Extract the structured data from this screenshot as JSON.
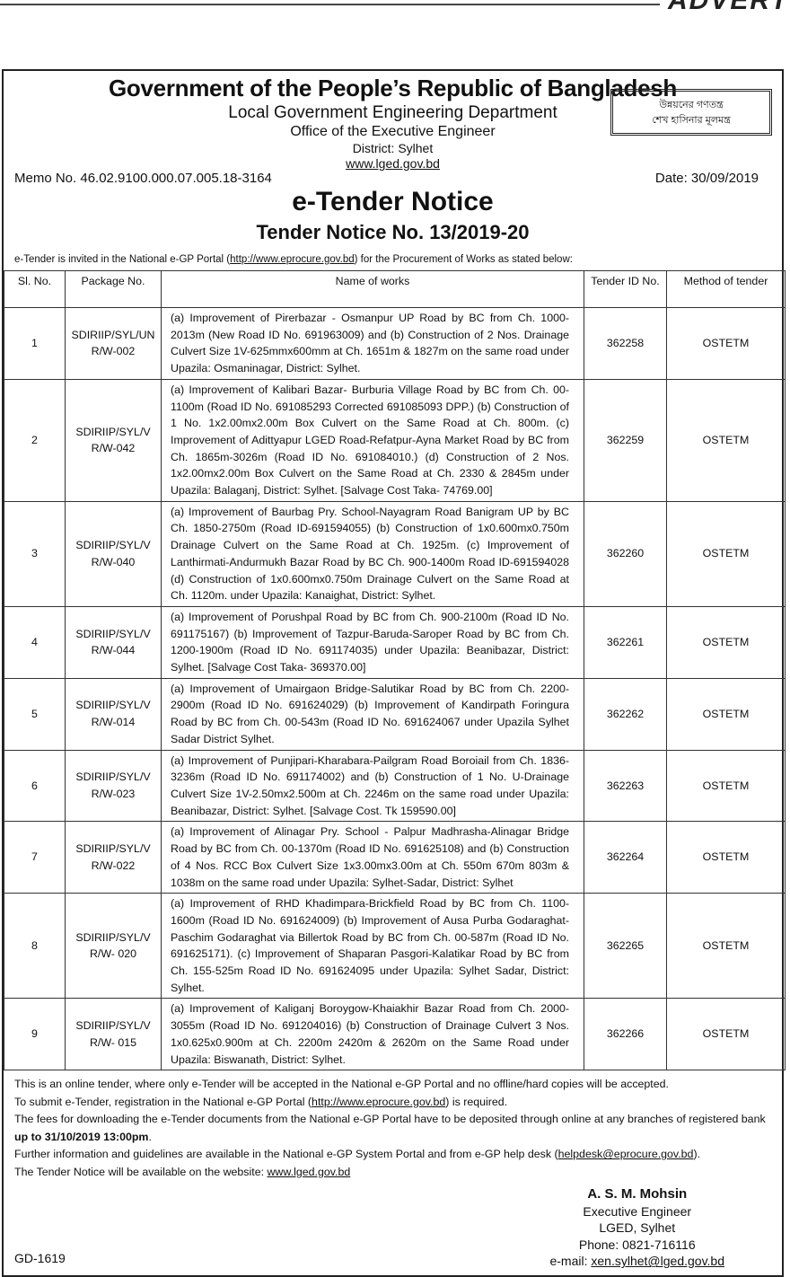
{
  "banner": {
    "advert_label": "ADVERT"
  },
  "header": {
    "title": "Government of the People’s Republic of Bangladesh",
    "department": "Local Government Engineering Department",
    "office": "Office of the Executive Engineer",
    "district": "District: Sylhet",
    "website": "www.lged.gov.bd",
    "slogan_line1": "উন্নয়নের গণতন্ত্র",
    "slogan_line2": "শেখ হাসিনার মূলমন্ত্র",
    "memo": "Memo No. 46.02.9100.000.07.005.18-3164",
    "date": "Date: 30/09/2019",
    "notice_title": "e-Tender Notice",
    "notice_number": "Tender Notice No. 13/2019-20",
    "intro_before": "e-Tender is invited in the National e-GP Portal (",
    "intro_link": "http://www.eprocure.gov.bd",
    "intro_after": ") for the Procurement of Works as stated below:"
  },
  "table": {
    "columns": [
      "Sl. No.",
      "Package No.",
      "Name of works",
      "Tender ID No.",
      "Method of tender"
    ],
    "rows": [
      {
        "sl": "1",
        "package": "SDIRIIP/SYL/UNR/W-002",
        "works": "(a) Improvement of Pirerbazar - Osmanpur UP Road by BC from Ch. 1000-2013m (New Road ID No. 691963009) and (b) Construction of 2 Nos. Drainage Culvert Size 1V-625mmx600mm at Ch. 1651m & 1827m on the same road under Upazila: Osmaninagar, District: Sylhet.",
        "tender_id": "362258",
        "method": "OSTETM"
      },
      {
        "sl": "2",
        "package": "SDIRIIP/SYL/VR/W-042",
        "works": "(a) Improvement of Kalibari Bazar- Burburia Village Road by BC from Ch. 00-1100m (Road ID No. 691085293 Corrected 691085093 DPP.) (b) Construction of 1 No. 1x2.00mx2.00m Box Culvert on the Same Road at Ch. 800m. (c) Improvement of Adittyapur LGED Road-Refatpur-Ayna Market Road by BC from Ch. 1865m-3026m (Road ID No. 691084010.) (d) Construction of 2 Nos. 1x2.00mx2.00m Box Culvert on the Same Road at Ch. 2330 & 2845m under Upazila: Balaganj, District: Sylhet. [Salvage Cost Taka- 74769.00]",
        "tender_id": "362259",
        "method": "OSTETM"
      },
      {
        "sl": "3",
        "package": "SDIRIIP/SYL/VR/W-040",
        "works": "(a) Improvement of Baurbag Pry. School-Nayagram Road Banigram UP by BC Ch. 1850-2750m (Road ID-691594055) (b) Construction of 1x0.600mx0.750m Drainage Culvert on the Same Road at Ch. 1925m. (c) Improvement of Lanthirmati-Andurmukh Bazar Road by BC Ch. 900-1400m Road ID-691594028 (d) Construction of 1x0.600mx0.750m Drainage Culvert on the Same Road at Ch. 1120m. under Upazila: Kanaighat, District: Sylhet.",
        "tender_id": "362260",
        "method": "OSTETM"
      },
      {
        "sl": "4",
        "package": "SDIRIIP/SYL/VR/W-044",
        "works": "(a) Improvement of Porushpal Road by BC from Ch. 900-2100m (Road ID No. 691175167) (b) Improvement of Tazpur-Baruda-Saroper Road by BC from Ch. 1200-1900m (Road ID No. 691174035) under Upazila: Beanibazar, District: Sylhet. [Salvage Cost Taka- 369370.00]",
        "tender_id": "362261",
        "method": "OSTETM"
      },
      {
        "sl": "5",
        "package": "SDIRIIP/SYL/VR/W-014",
        "works": "(a) Improvement of Umairgaon Bridge-Salutikar Road by BC from Ch. 2200-2900m (Road ID No. 691624029) (b) Improvement of Kandirpath Foringura Road by BC from Ch. 00-543m (Road ID No. 691624067 under Upazila Sylhet Sadar District Sylhet.",
        "tender_id": "362262",
        "method": "OSTETM"
      },
      {
        "sl": "6",
        "package": "SDIRIIP/SYL/VR/W-023",
        "works": "(a) Improvement of Punjipari-Kharabara-Pailgram Road Boroiail from Ch. 1836-3236m (Road ID No. 691174002) and (b) Construction of 1 No. U-Drainage Culvert Size 1V-2.50mx2.500m at Ch. 2246m on the same road under Upazila: Beanibazar, District: Sylhet. [Salvage Cost. Tk 159590.00]",
        "tender_id": "362263",
        "method": "OSTETM"
      },
      {
        "sl": "7",
        "package": "SDIRIIP/SYL/VR/W-022",
        "works": "(a) Improvement of Alinagar Pry. School - Palpur Madhrasha-Alinagar Bridge Road by BC from Ch. 00-1370m (Road ID No. 691625108) and (b) Construction of 4 Nos. RCC Box Culvert Size 1x3.00mx3.00m at Ch. 550m 670m 803m & 1038m on the same road under Upazila: Sylhet-Sadar, District: Sylhet",
        "tender_id": "362264",
        "method": "OSTETM"
      },
      {
        "sl": "8",
        "package": "SDIRIIP/SYL/VR/W- 020",
        "works": "(a) Improvement of RHD Khadimpara-Brickfield Road by BC from Ch. 1100-1600m (Road ID No. 691624009) (b) Improvement of Ausa Purba Godaraghat-Paschim Godaraghat via Billertok Road by BC from Ch. 00-587m (Road ID No. 691625171). (c) Improvement of Shaparan Pasgori-Kalatikar Road by BC from Ch. 155-525m Road ID No. 691624095 under Upazila: Sylhet Sadar, District: Sylhet.",
        "tender_id": "362265",
        "method": "OSTETM"
      },
      {
        "sl": "9",
        "package": "SDIRIIP/SYL/VR/W- 015",
        "works": "(a) Improvement of Kaliganj Boroygow-Khaiakhir Bazar Road from Ch. 2000-3055m (Road ID No. 691204016) (b) Construction of Drainage Culvert 3 Nos. 1x0.625x0.900m at Ch. 2200m 2420m & 2620m on the Same Road under Upazila: Biswanath, District: Sylhet.",
        "tender_id": "362266",
        "method": "OSTETM"
      }
    ]
  },
  "footer": {
    "line1": "This is an online tender, where only e-Tender will be accepted in the National e-GP Portal and no offline/hard copies will be accepted.",
    "line2_before": "To submit e-Tender, registration in the National e-GP Portal (",
    "line2_link": "http://www.eprocure.gov.bd",
    "line2_after": ") is required.",
    "line3": "The fees for downloading the e-Tender documents from the National e-GP Portal have to be deposited through online at any branches of registered bank",
    "deadline": "up to 31/10/2019 13:00pm",
    "line4_before": "Further information and guidelines are available in the National e-GP System Portal and from e-GP help desk (",
    "line4_link": "helpdesk@eprocure.gov.bd",
    "line4_after": ").",
    "line5_before": "The Tender Notice will be available on the website: ",
    "line5_link": "www.lged.gov.bd"
  },
  "signature": {
    "name": "A. S. M. Mohsin",
    "designation": "Executive Engineer",
    "office": "LGED, Sylhet",
    "phone": "Phone: 0821-716116",
    "email_label": "e-mail: ",
    "email": "xen.sylhet@lged.gov.bd"
  },
  "gd_number": "GD-1619"
}
